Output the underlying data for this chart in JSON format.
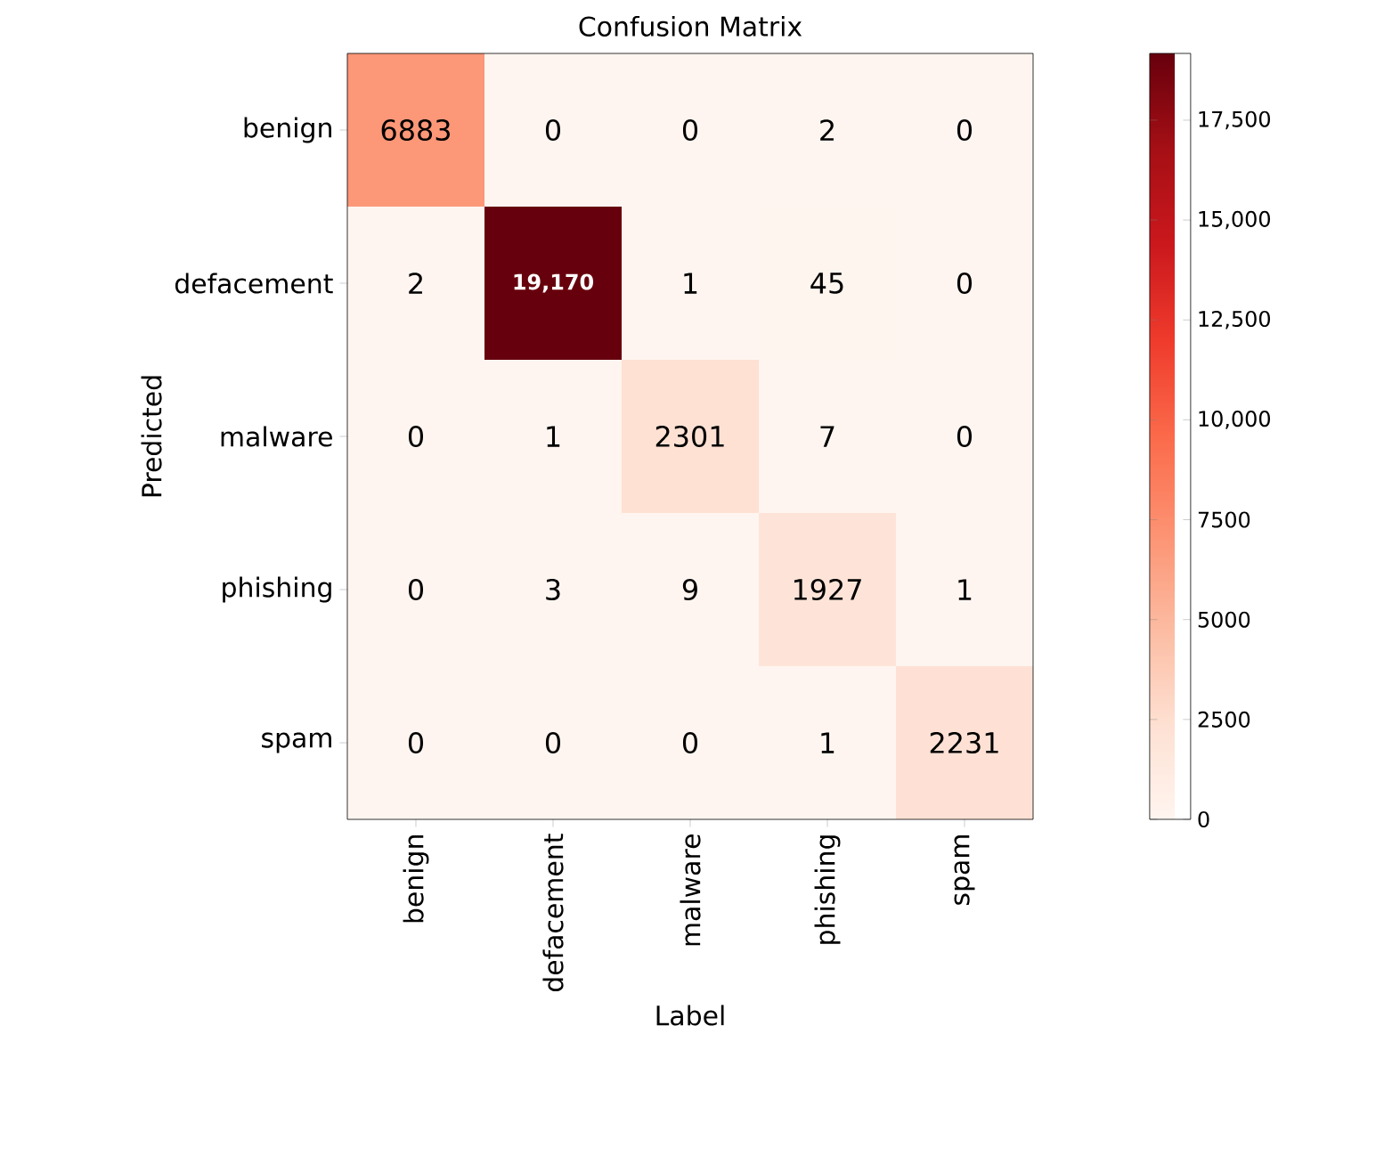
{
  "chart_data": {
    "type": "heatmap",
    "title": "Confusion Matrix",
    "xlabel": "Label",
    "ylabel": "Predicted",
    "categories": [
      "benign",
      "defacement",
      "malware",
      "phishing",
      "spam"
    ],
    "y_categories": [
      "benign",
      "defacement",
      "malware",
      "phishing",
      "spam"
    ],
    "cells": [
      [
        6883,
        0,
        0,
        2,
        0
      ],
      [
        2,
        19170,
        1,
        45,
        0
      ],
      [
        0,
        1,
        2301,
        7,
        0
      ],
      [
        0,
        3,
        9,
        1927,
        1
      ],
      [
        0,
        0,
        0,
        1,
        2231
      ]
    ],
    "cell_labels": [
      [
        "6883",
        "0",
        "0",
        "2",
        "0"
      ],
      [
        "2",
        "19,170",
        "1",
        "45",
        "0"
      ],
      [
        "0",
        "1",
        "2301",
        "7",
        "0"
      ],
      [
        "0",
        "3",
        "9",
        "1927",
        "1"
      ],
      [
        "0",
        "0",
        "0",
        "1",
        "2231"
      ]
    ],
    "clim": [
      0,
      19170
    ],
    "cticks": [
      0,
      2500,
      5000,
      7500,
      {
        "value": 10000,
        "label": "10,000"
      },
      {
        "value": 12500,
        "label": "12,500"
      },
      {
        "value": 15000,
        "label": "15,000"
      },
      {
        "value": 17500,
        "label": "17,500"
      }
    ]
  }
}
